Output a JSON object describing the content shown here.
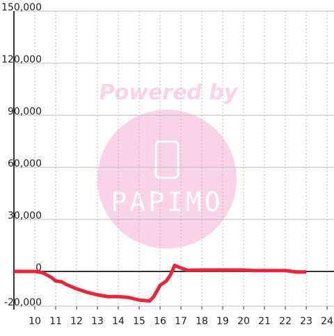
{
  "chart_data": {
    "type": "line",
    "x": [
      9,
      10,
      10.3,
      10.5,
      10.8,
      11,
      11.3,
      11.5,
      12,
      12.5,
      13,
      13.5,
      14,
      14.5,
      15,
      15.5,
      15.7,
      16,
      16.3,
      16.5,
      16.7,
      17,
      17.3,
      18,
      19,
      20,
      20.5,
      21,
      22,
      22.5,
      23
    ],
    "series": [
      {
        "color": "#e8263a",
        "values": [
          0,
          0,
          -500,
          -1500,
          -3500,
          -5500,
          -6000,
          -7500,
          -10000,
          -12000,
          -13500,
          -14500,
          -14500,
          -15000,
          -16500,
          -17000,
          -14500,
          -8000,
          -5500,
          -2000,
          3500,
          2000,
          700,
          800,
          800,
          800,
          500,
          500,
          500,
          -300,
          -300
        ]
      }
    ],
    "xlim": [
      9,
      24.33
    ],
    "xticks": [
      10,
      11,
      12,
      13,
      14,
      15,
      16,
      17,
      18,
      19,
      20,
      21,
      22,
      23,
      24
    ],
    "ylim": [
      -20000,
      150000
    ],
    "yticks": [
      {
        "value": -20000,
        "label": "-20,000"
      },
      0,
      {
        "value": 30000,
        "label": "30,000"
      },
      {
        "value": 60000,
        "label": "60,000"
      },
      {
        "value": 90000,
        "label": "90,000"
      },
      {
        "value": 120000,
        "label": "120,000"
      },
      {
        "value": 150000,
        "label": "150,000"
      }
    ],
    "grid": true,
    "watermark": {
      "line1": "Powered by",
      "line2": "PAPIMO"
    }
  }
}
